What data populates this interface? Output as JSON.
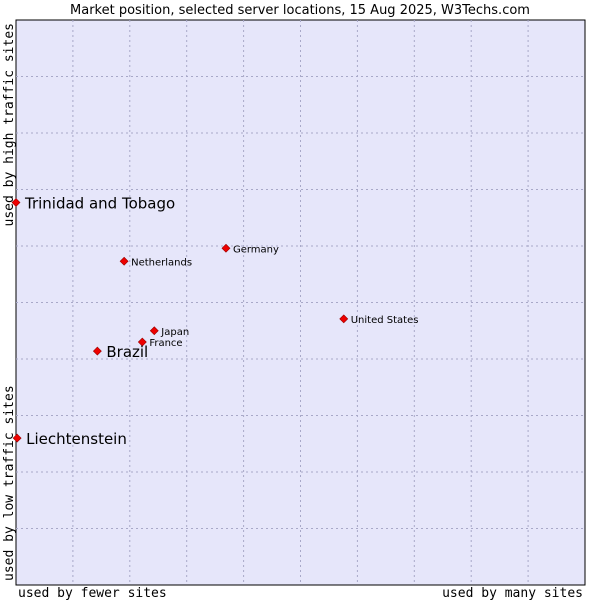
{
  "chart_data": {
    "type": "scatter",
    "title": "Market position, selected server locations, 15 Aug 2025, W3Techs.com",
    "xlabel_left": "used by fewer sites",
    "xlabel_right": "used by many sites",
    "ylabel_bottom": "used by low traffic sites",
    "ylabel_top": "used by high traffic sites",
    "xlim": [
      0,
      100
    ],
    "ylim": [
      0,
      100
    ],
    "grid": true,
    "colors": {
      "plot_bg": "#e6e6fa",
      "grid": "#a8a8c8",
      "marker": "#ee0000"
    },
    "points": [
      {
        "name": "Trinidad and Tobago",
        "x": 0.0,
        "y": 67.7,
        "emphasis": true
      },
      {
        "name": "Germany",
        "x": 36.9,
        "y": 59.6,
        "emphasis": false
      },
      {
        "name": "Netherlands",
        "x": 19.0,
        "y": 57.3,
        "emphasis": false
      },
      {
        "name": "United States",
        "x": 57.6,
        "y": 47.1,
        "emphasis": false
      },
      {
        "name": "Japan",
        "x": 24.3,
        "y": 45.0,
        "emphasis": false
      },
      {
        "name": "France",
        "x": 22.2,
        "y": 43.0,
        "emphasis": false
      },
      {
        "name": "Brazil",
        "x": 14.3,
        "y": 41.4,
        "emphasis": true
      },
      {
        "name": "Liechtenstein",
        "x": 0.2,
        "y": 26.0,
        "emphasis": true
      }
    ]
  }
}
